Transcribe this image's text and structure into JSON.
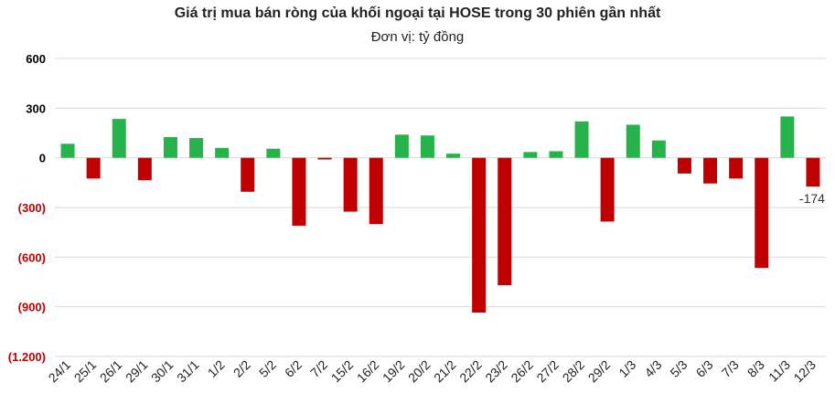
{
  "chart_data": {
    "type": "bar",
    "title": "Giá trị mua bán ròng của khối ngoại tại HOSE trong 30 phiên gần nhất",
    "subtitle": "Đơn vị: tỷ đồng",
    "categories": [
      "24/1",
      "25/1",
      "26/1",
      "29/1",
      "30/1",
      "31/1",
      "1/2",
      "2/2",
      "5/2",
      "6/2",
      "7/2",
      "15/2",
      "16/2",
      "19/2",
      "20/2",
      "21/2",
      "22/2",
      "23/2",
      "26/2",
      "27/2",
      "28/2",
      "29/2",
      "1/3",
      "4/3",
      "5/3",
      "6/3",
      "7/3",
      "8/3",
      "11/3",
      "12/3"
    ],
    "values": [
      85,
      -125,
      235,
      -135,
      125,
      120,
      60,
      -205,
      55,
      -410,
      -10,
      -325,
      -400,
      140,
      135,
      25,
      -935,
      -770,
      35,
      40,
      220,
      -385,
      200,
      105,
      -95,
      -155,
      -125,
      -665,
      250,
      -174
    ],
    "y_ticks": [
      600,
      300,
      0,
      -300,
      -600,
      -900,
      -1200
    ],
    "y_tick_labels": [
      "600",
      "300",
      "0",
      "(300)",
      "(600)",
      "(900)",
      "(1.200)"
    ],
    "ylim": [
      -1200,
      600
    ],
    "annotation": {
      "category": "12/3",
      "text": "-174"
    },
    "colors": {
      "positive": "#27b34b",
      "negative": "#c00000",
      "grid": "#d9d9d9",
      "tick_positive": "#000000",
      "tick_negative": "#c00000"
    },
    "grid": true
  }
}
